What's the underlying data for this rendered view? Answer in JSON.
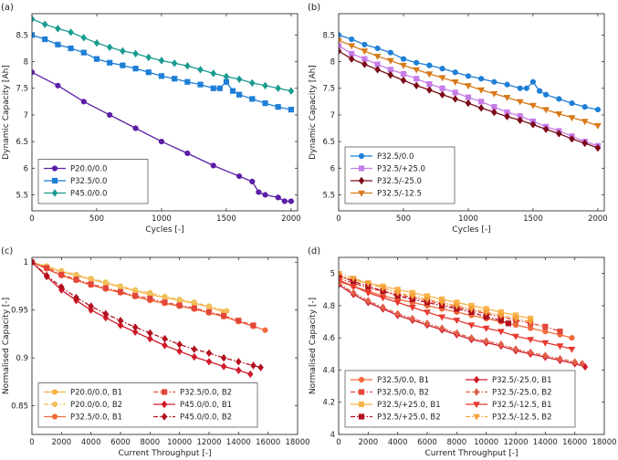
{
  "chart_data": [
    {
      "panel_label": "(a)",
      "type": "line",
      "xlabel": "Cycles [-]",
      "ylabel": "Dynamic Capacity [Ah]",
      "xlim": [
        0,
        2050
      ],
      "ylim": [
        5.2,
        8.9
      ],
      "xticks": [
        0,
        500,
        1000,
        1500,
        2000
      ],
      "yticks": [
        5.5,
        6,
        6.5,
        7,
        7.5,
        8,
        8.5
      ],
      "legend_position": "bottom-left",
      "series": [
        {
          "name": "P20.0/0.0",
          "color": "#5b1fa6",
          "marker": "circle",
          "dash": "solid",
          "x": [
            0,
            200,
            400,
            600,
            800,
            1000,
            1200,
            1400,
            1600,
            1700,
            1750,
            1800,
            1900,
            1950,
            2000
          ],
          "y": [
            7.8,
            7.55,
            7.25,
            7.0,
            6.75,
            6.5,
            6.28,
            6.05,
            5.85,
            5.75,
            5.55,
            5.5,
            5.45,
            5.38,
            5.38
          ]
        },
        {
          "name": "P32.5/0.0",
          "color": "#1f7fd6",
          "marker": "square",
          "dash": "solid",
          "x": [
            0,
            100,
            200,
            300,
            400,
            500,
            600,
            700,
            800,
            900,
            1000,
            1100,
            1200,
            1300,
            1400,
            1450,
            1500,
            1550,
            1600,
            1700,
            1800,
            1900,
            2000
          ],
          "y": [
            8.5,
            8.42,
            8.32,
            8.25,
            8.17,
            8.05,
            7.98,
            7.93,
            7.87,
            7.8,
            7.73,
            7.68,
            7.62,
            7.57,
            7.5,
            7.5,
            7.62,
            7.45,
            7.38,
            7.3,
            7.22,
            7.15,
            7.1
          ]
        },
        {
          "name": "P45.0/0.0",
          "color": "#1a9b8f",
          "marker": "diamond",
          "dash": "solid",
          "x": [
            0,
            100,
            200,
            300,
            400,
            500,
            600,
            700,
            800,
            900,
            1000,
            1100,
            1200,
            1300,
            1400,
            1500,
            1600,
            1700,
            1800,
            1900,
            2000
          ],
          "y": [
            8.8,
            8.7,
            8.62,
            8.55,
            8.45,
            8.35,
            8.27,
            8.2,
            8.15,
            8.08,
            8.02,
            7.97,
            7.92,
            7.85,
            7.78,
            7.72,
            7.67,
            7.6,
            7.55,
            7.5,
            7.45
          ]
        }
      ]
    },
    {
      "panel_label": "(b)",
      "type": "line",
      "xlabel": "Cycles [-]",
      "ylabel": "Dynamic Capacity [Ah]",
      "xlim": [
        0,
        2050
      ],
      "ylim": [
        5.2,
        8.9
      ],
      "xticks": [
        0,
        500,
        1000,
        1500,
        2000
      ],
      "yticks": [
        5.5,
        6,
        6.5,
        7,
        7.5,
        8,
        8.5
      ],
      "legend_position": "bottom-left",
      "series": [
        {
          "name": "P32.5/0.0",
          "color": "#1f7fd6",
          "marker": "circle",
          "dash": "solid",
          "x": [
            0,
            100,
            200,
            300,
            400,
            500,
            600,
            700,
            800,
            900,
            1000,
            1100,
            1200,
            1300,
            1400,
            1450,
            1500,
            1550,
            1600,
            1700,
            1800,
            1900,
            2000
          ],
          "y": [
            8.5,
            8.42,
            8.32,
            8.25,
            8.17,
            8.05,
            7.98,
            7.93,
            7.87,
            7.8,
            7.73,
            7.68,
            7.62,
            7.57,
            7.5,
            7.5,
            7.62,
            7.45,
            7.38,
            7.3,
            7.22,
            7.15,
            7.1
          ]
        },
        {
          "name": "P32.5/+25.0",
          "color": "#c77de8",
          "marker": "square",
          "dash": "solid",
          "x": [
            0,
            100,
            200,
            300,
            400,
            500,
            600,
            700,
            800,
            900,
            1000,
            1100,
            1200,
            1300,
            1400,
            1500,
            1600,
            1700,
            1800,
            1900,
            2000
          ],
          "y": [
            8.3,
            8.15,
            8.05,
            7.95,
            7.85,
            7.77,
            7.68,
            7.58,
            7.5,
            7.42,
            7.33,
            7.25,
            7.15,
            7.05,
            6.98,
            6.88,
            6.78,
            6.7,
            6.6,
            6.5,
            6.42
          ]
        },
        {
          "name": "P32.5/-25.0",
          "color": "#7a0b16",
          "marker": "diamond",
          "dash": "solid",
          "x": [
            0,
            100,
            200,
            300,
            400,
            500,
            600,
            700,
            800,
            900,
            1000,
            1100,
            1200,
            1300,
            1400,
            1500,
            1600,
            1700,
            1800,
            1900,
            2000
          ],
          "y": [
            8.2,
            8.05,
            7.95,
            7.85,
            7.75,
            7.65,
            7.55,
            7.47,
            7.38,
            7.3,
            7.22,
            7.13,
            7.05,
            6.97,
            6.9,
            6.82,
            6.73,
            6.65,
            6.55,
            6.47,
            6.38
          ]
        },
        {
          "name": "P32.5/-12.5",
          "color": "#d8791a",
          "marker": "triangle-down",
          "dash": "solid",
          "x": [
            0,
            100,
            200,
            300,
            400,
            500,
            600,
            700,
            800,
            900,
            1000,
            1100,
            1200,
            1300,
            1400,
            1500,
            1600,
            1700,
            1800,
            1900,
            2000
          ],
          "y": [
            8.4,
            8.3,
            8.2,
            8.1,
            8.02,
            7.93,
            7.85,
            7.77,
            7.7,
            7.62,
            7.55,
            7.47,
            7.4,
            7.33,
            7.25,
            7.18,
            7.1,
            7.02,
            6.95,
            6.88,
            6.8
          ]
        }
      ]
    },
    {
      "panel_label": "(c)",
      "type": "line",
      "xlabel": "Current Throughput [-]",
      "ylabel": "Normalised Capacity [-]",
      "xlim": [
        0,
        18000
      ],
      "ylim": [
        0.82,
        1.005
      ],
      "xticks": [
        0,
        2000,
        4000,
        6000,
        8000,
        10000,
        12000,
        14000,
        16000,
        18000
      ],
      "yticks": [
        0.85,
        0.9,
        0.95,
        1
      ],
      "legend_position": "bottom-left",
      "series": [
        {
          "name": "P20.0/0.0, B1",
          "color": "#f7b24a",
          "marker": "circle",
          "dash": "solid",
          "x": [
            0,
            1000,
            2000,
            3000,
            4000,
            5000,
            6000,
            7000,
            8000,
            9000,
            10000,
            11000,
            12000,
            13000
          ],
          "y": [
            1.0,
            0.995,
            0.99,
            0.986,
            0.982,
            0.978,
            0.974,
            0.97,
            0.966,
            0.963,
            0.96,
            0.957,
            0.953,
            0.948
          ]
        },
        {
          "name": "P20.0/0.0, B2",
          "color": "#f0c05a",
          "marker": "circle",
          "dash": "dashdot",
          "x": [
            0,
            1000,
            2000,
            3000,
            4000,
            5000,
            6000,
            7000,
            8000,
            9000,
            10000,
            11000,
            12000,
            13200
          ],
          "y": [
            1.0,
            0.996,
            0.991,
            0.987,
            0.983,
            0.979,
            0.975,
            0.971,
            0.968,
            0.964,
            0.961,
            0.958,
            0.954,
            0.949
          ]
        },
        {
          "name": "P32.5/0.0, B1",
          "color": "#f06a3a",
          "marker": "circle",
          "dash": "solid",
          "x": [
            0,
            1000,
            2000,
            3000,
            4000,
            5000,
            6000,
            7000,
            8000,
            9000,
            10000,
            11000,
            12000,
            13000,
            14000,
            15000,
            15800
          ],
          "y": [
            1.0,
            0.993,
            0.986,
            0.981,
            0.976,
            0.972,
            0.968,
            0.964,
            0.96,
            0.957,
            0.954,
            0.951,
            0.947,
            0.943,
            0.938,
            0.933,
            0.929
          ]
        },
        {
          "name": "P32.5/0.0, B2",
          "color": "#e2473a",
          "marker": "square",
          "dash": "dashdot",
          "x": [
            0,
            1000,
            2000,
            3000,
            4000,
            5000,
            6000,
            7000,
            8000,
            9000,
            10000,
            11000,
            12000,
            13000,
            14000,
            15000
          ],
          "y": [
            1.0,
            0.994,
            0.987,
            0.982,
            0.977,
            0.973,
            0.969,
            0.965,
            0.962,
            0.958,
            0.955,
            0.952,
            0.948,
            0.944,
            0.939,
            0.934
          ]
        },
        {
          "name": "P45.0/0.0, B1",
          "color": "#d11a2a",
          "marker": "diamond",
          "dash": "solid",
          "x": [
            0,
            1000,
            2000,
            3000,
            4000,
            5000,
            6000,
            7000,
            8000,
            9000,
            10000,
            11000,
            12000,
            13000,
            14000,
            14800
          ],
          "y": [
            1.0,
            0.985,
            0.971,
            0.96,
            0.95,
            0.942,
            0.934,
            0.927,
            0.92,
            0.913,
            0.907,
            0.901,
            0.896,
            0.891,
            0.887,
            0.883
          ]
        },
        {
          "name": "P45.0/0.0, B2",
          "color": "#b3101e",
          "marker": "diamond",
          "dash": "dashdot",
          "x": [
            0,
            1000,
            2000,
            3000,
            4000,
            5000,
            6000,
            7000,
            8000,
            9000,
            10000,
            11000,
            12000,
            13000,
            14000,
            15000,
            15500
          ],
          "y": [
            1.0,
            0.986,
            0.974,
            0.963,
            0.954,
            0.946,
            0.939,
            0.932,
            0.926,
            0.92,
            0.914,
            0.909,
            0.905,
            0.9,
            0.896,
            0.892,
            0.89
          ]
        }
      ]
    },
    {
      "panel_label": "(d)",
      "type": "line",
      "xlabel": "Current Throughput [-]",
      "ylabel": "Normalised Capacity [-]",
      "xlim": [
        0,
        18000
      ],
      "ylim": [
        4.0,
        5.1
      ],
      "xticks": [
        0,
        2000,
        4000,
        6000,
        8000,
        10000,
        12000,
        14000,
        16000,
        18000
      ],
      "yticks": [
        4,
        4.2,
        4.4,
        4.6,
        4.8,
        5
      ],
      "legend_position": "bottom-left",
      "series": [
        {
          "name": "P32.5/0.0, B1",
          "color": "#f06a3a",
          "marker": "circle",
          "dash": "solid",
          "x": [
            0,
            1000,
            2000,
            3000,
            4000,
            5000,
            6000,
            7000,
            8000,
            9000,
            10000,
            11000,
            12000,
            13000,
            14000,
            15000,
            15800
          ],
          "y": [
            4.95,
            4.92,
            4.89,
            4.86,
            4.84,
            4.82,
            4.8,
            4.78,
            4.76,
            4.74,
            4.72,
            4.7,
            4.68,
            4.66,
            4.64,
            4.62,
            4.6
          ]
        },
        {
          "name": "P32.5/0.0, B2",
          "color": "#e2473a",
          "marker": "square",
          "dash": "dashdot",
          "x": [
            0,
            1000,
            2000,
            3000,
            4000,
            5000,
            6000,
            7000,
            8000,
            9000,
            10000,
            11000,
            12000,
            13000,
            14000,
            15000
          ],
          "y": [
            4.97,
            4.94,
            4.91,
            4.89,
            4.87,
            4.85,
            4.83,
            4.81,
            4.79,
            4.77,
            4.75,
            4.73,
            4.71,
            4.69,
            4.67,
            4.64
          ]
        },
        {
          "name": "P32.5/+25.0, B1",
          "color": "#f7b24a",
          "marker": "square",
          "dash": "solid",
          "x": [
            0,
            1000,
            2000,
            3000,
            4000,
            5000,
            6000,
            7000,
            8000,
            9000,
            10000,
            11000,
            12000,
            13000
          ],
          "y": [
            4.98,
            4.96,
            4.94,
            4.92,
            4.9,
            4.88,
            4.86,
            4.84,
            4.82,
            4.8,
            4.78,
            4.76,
            4.74,
            4.72
          ]
        },
        {
          "name": "P32.5/+25.0, B2",
          "color": "#b3101e",
          "marker": "square",
          "dash": "dashdot",
          "x": [
            0,
            1000,
            2000,
            3000,
            4000,
            5000,
            6000,
            7000,
            8000,
            9000,
            10000,
            11000,
            11500
          ],
          "y": [
            4.99,
            4.95,
            4.92,
            4.89,
            4.86,
            4.84,
            4.82,
            4.8,
            4.78,
            4.76,
            4.73,
            4.71,
            4.69
          ]
        },
        {
          "name": "P32.5/-25.0, B1",
          "color": "#d11a2a",
          "marker": "diamond",
          "dash": "solid",
          "x": [
            0,
            1000,
            2000,
            3000,
            4000,
            5000,
            6000,
            7000,
            8000,
            9000,
            10000,
            11000,
            12000,
            13000,
            14000,
            15000,
            16000,
            16700
          ],
          "y": [
            4.93,
            4.87,
            4.82,
            4.78,
            4.74,
            4.71,
            4.68,
            4.65,
            4.62,
            4.59,
            4.57,
            4.55,
            4.52,
            4.5,
            4.48,
            4.46,
            4.44,
            4.42
          ]
        },
        {
          "name": "P32.5/-25.0, B2",
          "color": "#e0604a",
          "marker": "diamond",
          "dash": "dashdot",
          "x": [
            0,
            1000,
            2000,
            3000,
            4000,
            5000,
            6000,
            7000,
            8000,
            9000,
            10000,
            11000,
            12000,
            13000,
            14000,
            15000,
            16000,
            16500
          ],
          "y": [
            4.94,
            4.88,
            4.83,
            4.79,
            4.75,
            4.72,
            4.69,
            4.66,
            4.63,
            4.6,
            4.58,
            4.56,
            4.53,
            4.51,
            4.49,
            4.47,
            4.45,
            4.44
          ]
        },
        {
          "name": "P32.5/-12.5, B1",
          "color": "#e8392e",
          "marker": "triangle-down",
          "dash": "solid",
          "x": [
            0,
            1000,
            2000,
            3000,
            4000,
            5000,
            6000,
            7000,
            8000,
            9000,
            10000,
            11000,
            12000,
            13000,
            14000,
            15000,
            15800
          ],
          "y": [
            4.96,
            4.92,
            4.88,
            4.85,
            4.82,
            4.79,
            4.76,
            4.73,
            4.71,
            4.68,
            4.66,
            4.64,
            4.61,
            4.59,
            4.57,
            4.55,
            4.53
          ]
        },
        {
          "name": "P32.5/-12.5, B2",
          "color": "#f4a03a",
          "marker": "triangle-down",
          "dash": "dashdot",
          "x": [
            0,
            1000,
            2000,
            3000,
            4000,
            5000,
            6000,
            7000,
            8000,
            9000,
            10000,
            11000,
            12000,
            13000
          ],
          "y": [
            5.0,
            4.97,
            4.94,
            4.91,
            4.88,
            4.86,
            4.84,
            4.82,
            4.8,
            4.78,
            4.76,
            4.74,
            4.72,
            4.7
          ]
        }
      ]
    }
  ]
}
